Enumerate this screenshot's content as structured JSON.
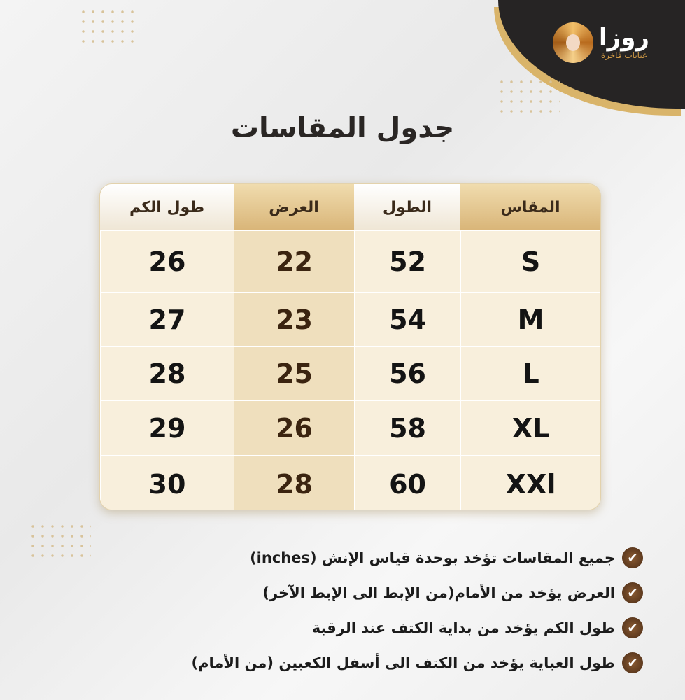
{
  "brand": {
    "name": "روزا",
    "tagline": "عبايات فاخرة"
  },
  "title": "جدول المقاسات",
  "table": {
    "headers": [
      "المقاس",
      "الطول",
      "العرض",
      "طول الكم"
    ],
    "rows": [
      [
        "S",
        "52",
        "22",
        "26"
      ],
      [
        "M",
        "54",
        "23",
        "27"
      ],
      [
        "L",
        "56",
        "25",
        "28"
      ],
      [
        "XL",
        "58",
        "26",
        "29"
      ],
      [
        "XXl",
        "60",
        "28",
        "30"
      ]
    ]
  },
  "notes": [
    "جميع المقاسات تؤخد بوحدة قياس الإنش (inches)",
    "العرض يؤخد من الأمام(من الإبط الى الإبط الآخر)",
    "طول الكم يؤخد من بداية الكتف عند الرقبة",
    "طول العباية يؤخد من الكتف الى أسفل الكعبين (من الأمام)"
  ],
  "colors": {
    "accent": "#d9b578",
    "dark": "#262424",
    "check": "#5a3820"
  }
}
